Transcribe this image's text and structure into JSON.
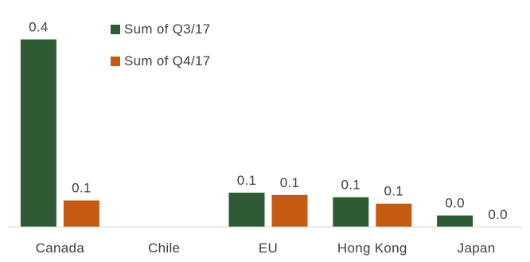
{
  "chart_data": {
    "type": "bar",
    "categories": [
      "Canada",
      "Chile",
      "EU",
      "Hong Kong",
      "Japan"
    ],
    "series": [
      {
        "name": "Sum of Q3/17",
        "color": "#2e5b34",
        "values": [
          0.41,
          null,
          0.075,
          0.065,
          0.025
        ],
        "data_labels": [
          "0.4",
          "",
          "0.1",
          "0.1",
          "0.0"
        ]
      },
      {
        "name": "Sum of Q4/17",
        "color": "#c55a11",
        "values": [
          0.058,
          null,
          0.07,
          0.051,
          0.0
        ],
        "data_labels": [
          "0.1",
          "",
          "0.1",
          "0.1",
          "0.0"
        ]
      }
    ],
    "ylim": [
      0,
      0.43
    ],
    "grid": false,
    "legend_position": "top-center",
    "title": "",
    "xlabel": "",
    "ylabel": ""
  }
}
